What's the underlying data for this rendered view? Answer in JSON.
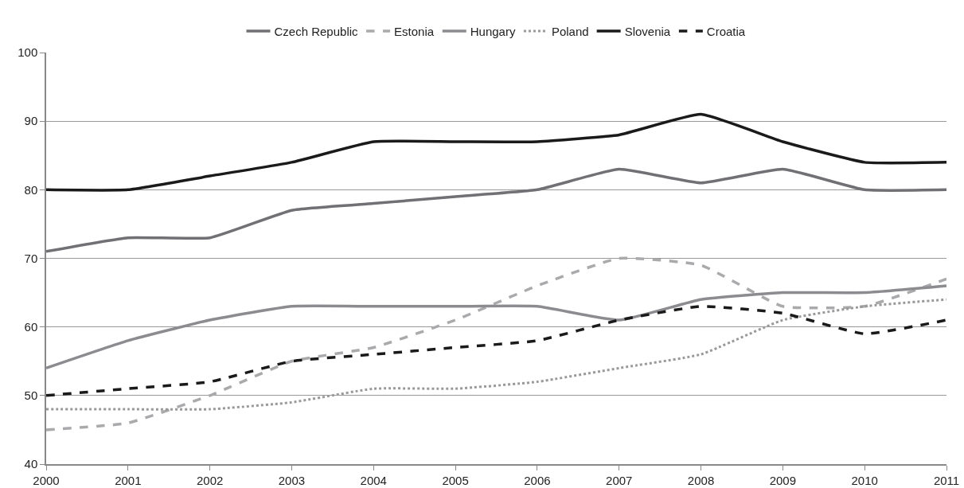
{
  "chart_data": {
    "type": "line",
    "x": [
      2000,
      2001,
      2002,
      2003,
      2004,
      2005,
      2006,
      2007,
      2008,
      2009,
      2010,
      2011
    ],
    "xlim": [
      2000,
      2011
    ],
    "xticks": [
      2000,
      2001,
      2002,
      2003,
      2004,
      2005,
      2006,
      2007,
      2008,
      2009,
      2010,
      2011
    ],
    "ylim": [
      40,
      100
    ],
    "yticks": [
      40,
      50,
      60,
      70,
      80,
      90,
      100
    ],
    "grid": "y",
    "legend": "top",
    "marker": "none",
    "series": [
      {
        "name": "Czech Republic",
        "color": "#707075",
        "line_style": "solid",
        "values": [
          71,
          73,
          73,
          77,
          78,
          79,
          80,
          83,
          81,
          83,
          80,
          80
        ]
      },
      {
        "name": "Estonia",
        "color": "#aaaaad",
        "line_style": "dashed",
        "values": [
          45,
          46,
          50,
          55,
          57,
          61,
          66,
          70,
          69,
          63,
          63,
          67
        ]
      },
      {
        "name": "Hungary",
        "color": "#8c8c90",
        "line_style": "solid",
        "values": [
          54,
          58,
          61,
          63,
          63,
          63,
          63,
          61,
          64,
          65,
          65,
          66
        ]
      },
      {
        "name": "Poland",
        "color": "#999999",
        "line_style": "dotted",
        "values": [
          48,
          48,
          48,
          49,
          51,
          51,
          52,
          54,
          56,
          61,
          63,
          64
        ]
      },
      {
        "name": "Slovenia",
        "color": "#1a1a1a",
        "line_style": "solid",
        "values": [
          80,
          80,
          82,
          84,
          87,
          87,
          87,
          88,
          91,
          87,
          84,
          84
        ]
      },
      {
        "name": "Croatia",
        "color": "#1a1a1a",
        "line_style": "dashed",
        "values": [
          50,
          51,
          52,
          55,
          56,
          57,
          58,
          61,
          63,
          62,
          59,
          61
        ]
      }
    ]
  }
}
